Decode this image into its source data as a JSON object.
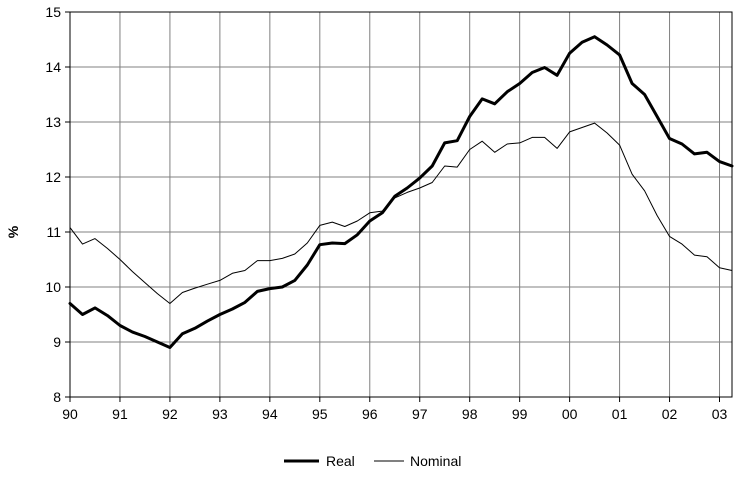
{
  "chart_data": {
    "type": "line",
    "title": "",
    "xlabel": "",
    "ylabel": "%",
    "ylim": [
      8,
      15
    ],
    "yticks": [
      8,
      9,
      10,
      11,
      12,
      13,
      14,
      15
    ],
    "xlim": [
      1990,
      2003.25
    ],
    "x_tick_labels": [
      "90",
      "91",
      "92",
      "93",
      "94",
      "95",
      "96",
      "97",
      "98",
      "99",
      "00",
      "01",
      "02",
      "03"
    ],
    "x_tick_values": [
      1990,
      1991,
      1992,
      1993,
      1994,
      1995,
      1996,
      1997,
      1998,
      1999,
      2000,
      2001,
      2002,
      2003
    ],
    "grid": true,
    "legend_position": "bottom-center",
    "x": [
      1990.0,
      1990.25,
      1990.5,
      1990.75,
      1991.0,
      1991.25,
      1991.5,
      1991.75,
      1992.0,
      1992.25,
      1992.5,
      1992.75,
      1993.0,
      1993.25,
      1993.5,
      1993.75,
      1994.0,
      1994.25,
      1994.5,
      1994.75,
      1995.0,
      1995.25,
      1995.5,
      1995.75,
      1996.0,
      1996.25,
      1996.5,
      1996.75,
      1997.0,
      1997.25,
      1997.5,
      1997.75,
      1998.0,
      1998.25,
      1998.5,
      1998.75,
      1999.0,
      1999.25,
      1999.5,
      1999.75,
      2000.0,
      2000.25,
      2000.5,
      2000.75,
      2001.0,
      2001.25,
      2001.5,
      2001.75,
      2002.0,
      2002.25,
      2002.5,
      2002.75,
      2003.0,
      2003.25
    ],
    "series": [
      {
        "name": "Real",
        "style": "thick",
        "color": "#000000",
        "values": [
          9.7,
          9.5,
          9.62,
          9.48,
          9.3,
          9.18,
          9.1,
          9.0,
          8.9,
          9.15,
          9.25,
          9.38,
          9.5,
          9.6,
          9.72,
          9.92,
          9.97,
          10.0,
          10.12,
          10.4,
          10.77,
          10.8,
          10.79,
          10.95,
          11.2,
          11.35,
          11.65,
          11.8,
          11.98,
          12.2,
          12.62,
          12.66,
          13.1,
          13.42,
          13.33,
          13.55,
          13.7,
          13.9,
          13.99,
          13.85,
          14.25,
          14.45,
          14.55,
          14.4,
          14.22,
          13.7,
          13.5,
          13.1,
          12.7,
          12.6,
          12.42,
          12.45,
          12.28,
          12.2
        ]
      },
      {
        "name": "Nominal",
        "style": "thin",
        "color": "#000000",
        "values": [
          11.08,
          10.78,
          10.88,
          10.7,
          10.5,
          10.28,
          10.08,
          9.88,
          9.7,
          9.9,
          9.98,
          10.05,
          10.12,
          10.25,
          10.3,
          10.48,
          10.48,
          10.52,
          10.6,
          10.8,
          11.12,
          11.18,
          11.1,
          11.2,
          11.35,
          11.38,
          11.62,
          11.72,
          11.8,
          11.9,
          12.2,
          12.18,
          12.5,
          12.65,
          12.45,
          12.6,
          12.62,
          12.72,
          12.72,
          12.52,
          12.82,
          12.9,
          12.98,
          12.8,
          12.58,
          12.05,
          11.75,
          11.3,
          10.92,
          10.78,
          10.58,
          10.55,
          10.35,
          10.3
        ]
      }
    ]
  },
  "legend": {
    "items": [
      {
        "label": "Real",
        "style": "thick"
      },
      {
        "label": "Nominal",
        "style": "thin"
      }
    ]
  },
  "axes": {
    "ylabel": "%"
  },
  "colors": {
    "line": "#000000",
    "grid": "#808080",
    "background": "#ffffff"
  }
}
